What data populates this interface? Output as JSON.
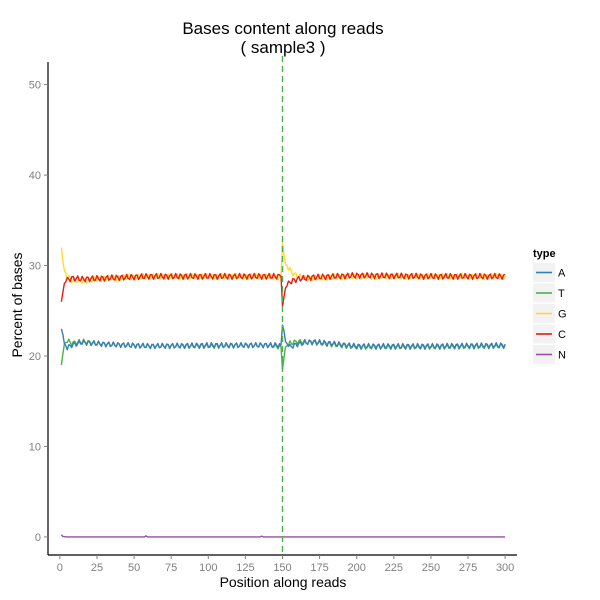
{
  "chart_data": {
    "type": "line",
    "title": "Bases content along reads",
    "subtitle": "( sample3 )",
    "xlabel": "Position along reads",
    "ylabel": "Percent of bases",
    "xlim": [
      -8,
      308
    ],
    "ylim": [
      -2,
      52.5
    ],
    "x_ticks": [
      0,
      25,
      50,
      75,
      100,
      125,
      150,
      175,
      200,
      225,
      250,
      275,
      300
    ],
    "y_ticks": [
      0,
      10,
      20,
      30,
      40,
      50
    ],
    "grid": false,
    "legend": {
      "title": "type",
      "placement": "right"
    },
    "vline": {
      "x": 150,
      "color": "#4daf4a",
      "style": "dashed"
    },
    "series": [
      {
        "name": "A",
        "color": "#377eb8",
        "anchors": [
          [
            1,
            23.0
          ],
          [
            2,
            22.4
          ],
          [
            3,
            21.4
          ],
          [
            5,
            20.9
          ],
          [
            8,
            21.2
          ],
          [
            15,
            21.5
          ],
          [
            30,
            21.3
          ],
          [
            60,
            21.1
          ],
          [
            100,
            21.2
          ],
          [
            140,
            21.2
          ],
          [
            149,
            21.2
          ],
          [
            150,
            23.4
          ],
          [
            151,
            22.8
          ],
          [
            152,
            21.6
          ],
          [
            155,
            21.0
          ],
          [
            160,
            21.3
          ],
          [
            170,
            21.6
          ],
          [
            200,
            21.1
          ],
          [
            250,
            21.1
          ],
          [
            300,
            21.2
          ]
        ],
        "noise": 0.28
      },
      {
        "name": "T",
        "color": "#4daf4a",
        "anchors": [
          [
            1,
            19.0
          ],
          [
            2,
            20.2
          ],
          [
            3,
            21.3
          ],
          [
            5,
            21.7
          ],
          [
            8,
            21.4
          ],
          [
            15,
            21.6
          ],
          [
            30,
            21.3
          ],
          [
            60,
            21.1
          ],
          [
            100,
            21.1
          ],
          [
            140,
            21.2
          ],
          [
            149,
            21.0
          ],
          [
            150,
            18.5
          ],
          [
            151,
            19.8
          ],
          [
            152,
            21.0
          ],
          [
            155,
            21.4
          ],
          [
            160,
            21.6
          ],
          [
            170,
            21.5
          ],
          [
            200,
            21.0
          ],
          [
            250,
            21.0
          ],
          [
            300,
            21.1
          ]
        ],
        "noise": 0.28
      },
      {
        "name": "G",
        "color": "#ffd92f",
        "anchors": [
          [
            1,
            32.0
          ],
          [
            2,
            30.5
          ],
          [
            3,
            29.5
          ],
          [
            5,
            28.8
          ],
          [
            8,
            28.4
          ],
          [
            15,
            28.3
          ],
          [
            30,
            28.6
          ],
          [
            60,
            28.8
          ],
          [
            100,
            28.8
          ],
          [
            140,
            28.8
          ],
          [
            149,
            28.7
          ],
          [
            150,
            32.5
          ],
          [
            151,
            31.2
          ],
          [
            152,
            30.2
          ],
          [
            155,
            29.5
          ],
          [
            158,
            29.0
          ],
          [
            165,
            28.6
          ],
          [
            200,
            28.8
          ],
          [
            250,
            28.8
          ],
          [
            300,
            28.8
          ]
        ],
        "noise": 0.32
      },
      {
        "name": "C",
        "color": "#e41a1c",
        "anchors": [
          [
            1,
            26.0
          ],
          [
            2,
            27.0
          ],
          [
            3,
            28.0
          ],
          [
            5,
            28.4
          ],
          [
            8,
            28.6
          ],
          [
            15,
            28.5
          ],
          [
            30,
            28.6
          ],
          [
            60,
            28.8
          ],
          [
            100,
            28.8
          ],
          [
            140,
            28.8
          ],
          [
            149,
            28.8
          ],
          [
            150,
            25.5
          ],
          [
            151,
            26.5
          ],
          [
            152,
            27.5
          ],
          [
            155,
            28.2
          ],
          [
            160,
            28.5
          ],
          [
            170,
            28.7
          ],
          [
            200,
            28.9
          ],
          [
            250,
            28.8
          ],
          [
            300,
            28.8
          ]
        ],
        "noise": 0.32
      },
      {
        "name": "N",
        "color": "#984ea3",
        "anchors": [
          [
            1,
            0.25
          ],
          [
            2,
            0.05
          ],
          [
            5,
            0.0
          ],
          [
            57,
            0.0
          ],
          [
            58,
            0.12
          ],
          [
            59,
            0.0
          ],
          [
            135,
            0.0
          ],
          [
            136,
            0.08
          ],
          [
            137,
            0.0
          ],
          [
            300,
            0.0
          ]
        ],
        "noise": 0.0
      }
    ]
  }
}
